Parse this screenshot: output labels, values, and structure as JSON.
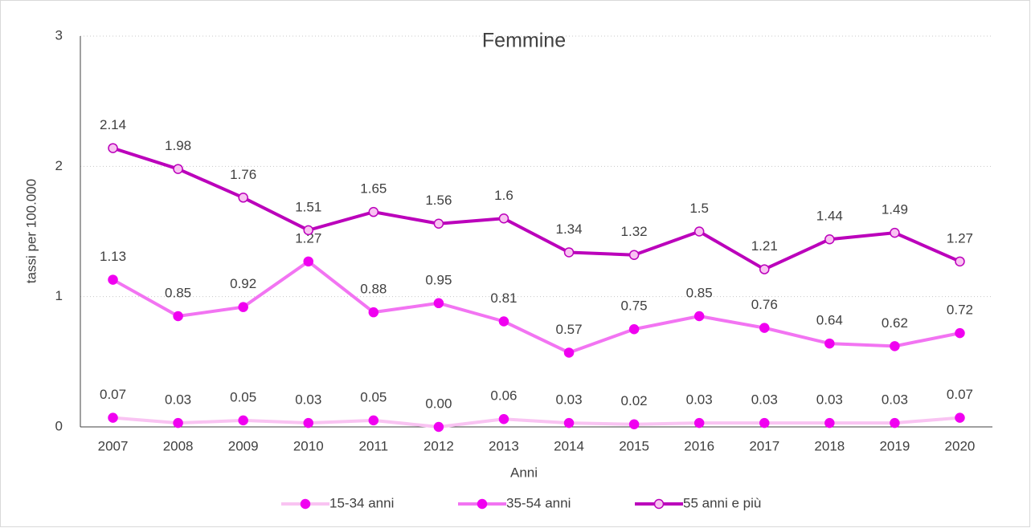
{
  "chart_data": {
    "type": "line",
    "title": "Femmine",
    "x_label": "Anni",
    "y_label": "tassi per 100.000",
    "categories": [
      "2007",
      "2008",
      "2009",
      "2010",
      "2011",
      "2012",
      "2013",
      "2014",
      "2015",
      "2016",
      "2017",
      "2018",
      "2019",
      "2020"
    ],
    "ylim": [
      0,
      3
    ],
    "yticks": [
      0,
      1,
      2,
      3
    ],
    "grid": true,
    "legend": "bottom",
    "series": [
      {
        "name": "15-34 anni",
        "color": "#f9c3f2",
        "marker_color": "#f000f0",
        "values": [
          0.07,
          0.03,
          0.05,
          0.03,
          0.05,
          0.0,
          0.06,
          0.03,
          0.02,
          0.03,
          0.03,
          0.03,
          0.03,
          0.07
        ],
        "value_labels": [
          "0.07",
          "0.03",
          "0.05",
          "0.03",
          "0.05",
          "0.00",
          "0.06",
          "0.03",
          "0.02",
          "0.03",
          "0.03",
          "0.03",
          "0.03",
          "0.07"
        ]
      },
      {
        "name": "35-54 anni",
        "color": "#f274f2",
        "marker_color": "#f000f0",
        "values": [
          1.13,
          0.85,
          0.92,
          1.27,
          0.88,
          0.95,
          0.81,
          0.57,
          0.75,
          0.85,
          0.76,
          0.64,
          0.62,
          0.72
        ]
      },
      {
        "name": "55 anni e più",
        "color": "#bb00bb",
        "marker_color": "#f9c3f2",
        "values": [
          2.14,
          1.98,
          1.76,
          1.51,
          1.65,
          1.56,
          1.6,
          1.34,
          1.32,
          1.5,
          1.21,
          1.44,
          1.49,
          1.27
        ]
      }
    ]
  }
}
